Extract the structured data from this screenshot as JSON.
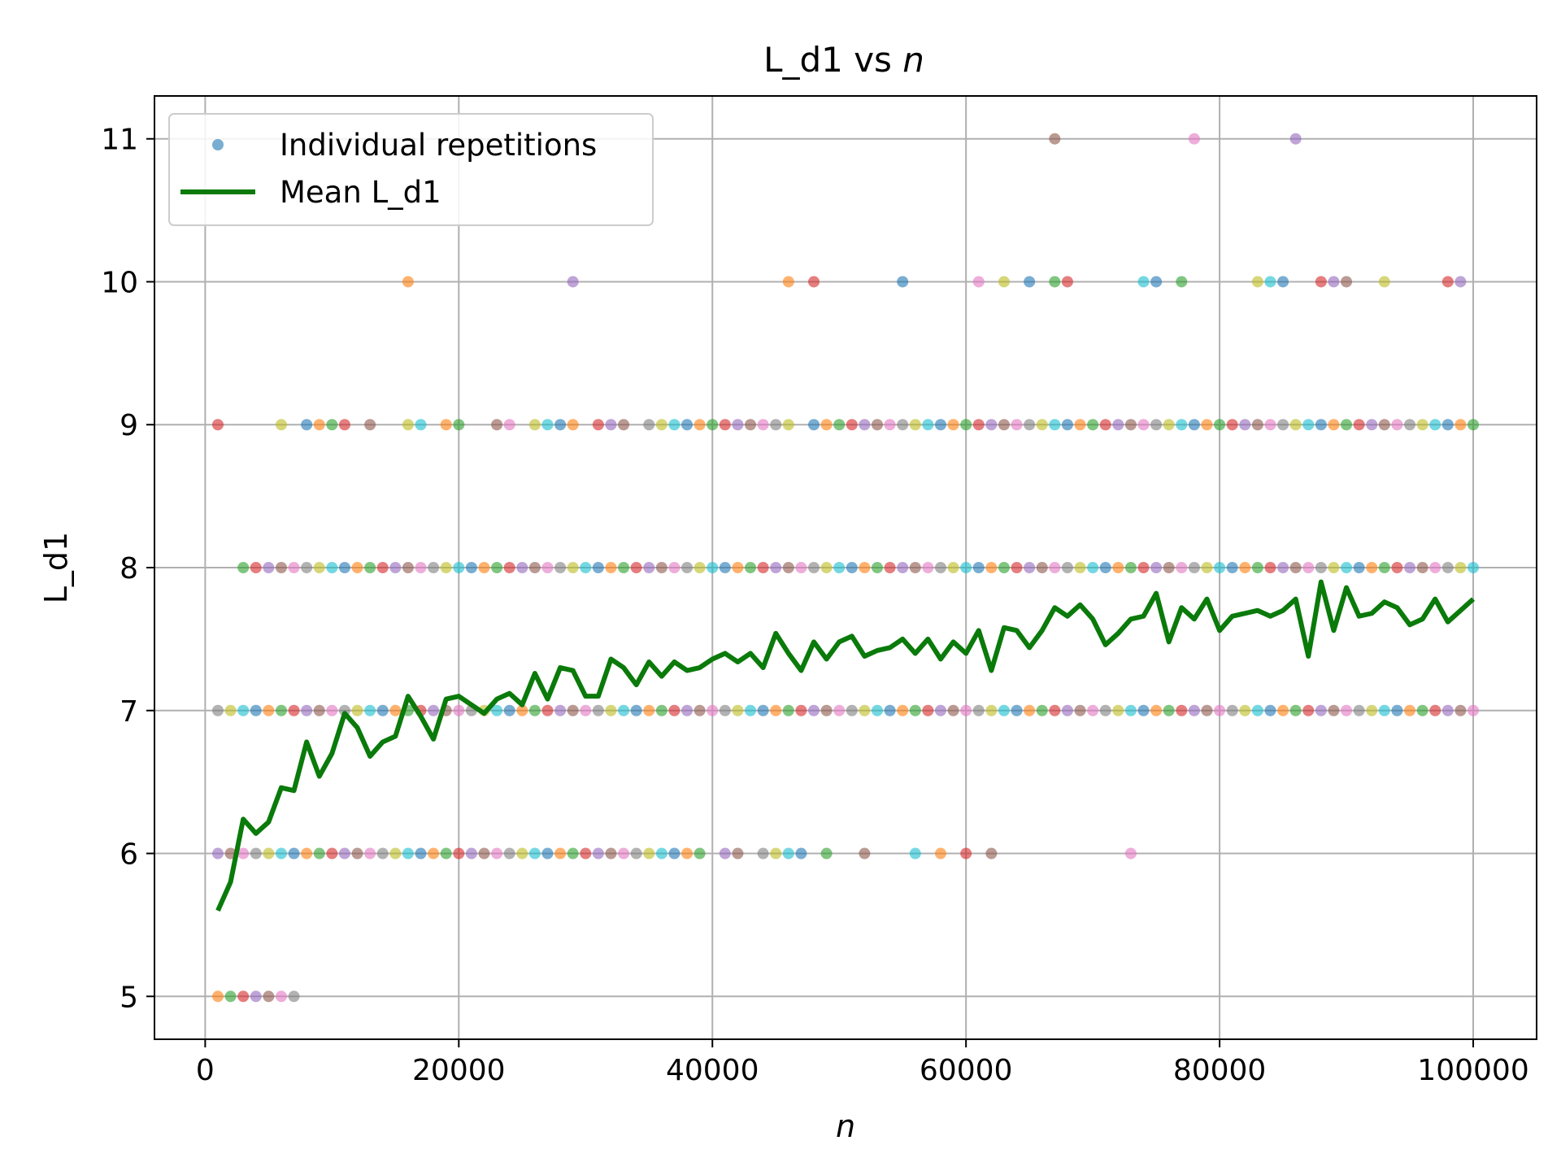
{
  "chart_data": {
    "type": "scatter",
    "title_main": "L_d1 vs ",
    "title_var": "n",
    "xlabel": "n",
    "ylabel": "L_d1",
    "xlim": [
      -4000,
      105000
    ],
    "ylim": [
      4.7,
      11.3
    ],
    "x_ticks": [
      0,
      20000,
      40000,
      60000,
      80000,
      100000
    ],
    "y_ticks": [
      5,
      6,
      7,
      8,
      9,
      10,
      11
    ],
    "grid": true,
    "legend_position": "top-left",
    "legend": [
      {
        "label": "Individual repetitions",
        "marker": "dot"
      },
      {
        "label": "Mean L_d1",
        "marker": "line"
      }
    ],
    "palette": [
      "#1f77b4",
      "#ff7f0e",
      "#2ca02c",
      "#d62728",
      "#9467bd",
      "#8c564b",
      "#e377c2",
      "#7f7f7f",
      "#bcbd22",
      "#17becf"
    ],
    "mean_color": "#0a7a0a",
    "individual_points": [
      {
        "y": 5,
        "x": [
          1000,
          2000,
          3000,
          4000,
          5000,
          6000,
          7000
        ]
      },
      {
        "y": 6,
        "x": [
          1000,
          2000,
          3000,
          4000,
          5000,
          6000,
          7000,
          8000,
          9000,
          10000,
          11000,
          12000,
          13000,
          14000,
          15000,
          16000,
          17000,
          18000,
          19000,
          20000,
          21000,
          22000,
          23000,
          24000,
          25000,
          26000,
          27000,
          28000,
          29000,
          30000,
          31000,
          32000,
          33000,
          34000,
          35000,
          36000,
          37000,
          38000,
          39000,
          41000,
          42000,
          44000,
          45000,
          46000,
          47000,
          49000,
          52000,
          56000,
          58000,
          60000,
          62000,
          73000
        ]
      },
      {
        "y": 7,
        "x": [
          1000,
          2000,
          3000,
          4000,
          5000,
          6000,
          7000,
          8000,
          9000,
          10000,
          11000,
          12000,
          13000,
          14000,
          15000,
          16000,
          17000,
          18000,
          19000,
          20000,
          21000,
          22000,
          23000,
          24000,
          25000,
          26000,
          27000,
          28000,
          29000,
          30000,
          31000,
          32000,
          33000,
          34000,
          35000,
          36000,
          37000,
          38000,
          39000,
          40000,
          41000,
          42000,
          43000,
          44000,
          45000,
          46000,
          47000,
          48000,
          49000,
          50000,
          51000,
          52000,
          53000,
          54000,
          55000,
          56000,
          57000,
          58000,
          59000,
          60000,
          61000,
          62000,
          63000,
          64000,
          65000,
          66000,
          67000,
          68000,
          69000,
          70000,
          71000,
          72000,
          73000,
          74000,
          75000,
          76000,
          77000,
          78000,
          79000,
          80000,
          81000,
          82000,
          83000,
          84000,
          85000,
          86000,
          87000,
          88000,
          89000,
          90000,
          91000,
          92000,
          93000,
          94000,
          95000,
          96000,
          97000,
          98000,
          99000,
          100000
        ]
      },
      {
        "y": 8,
        "x": [
          3000,
          4000,
          5000,
          6000,
          7000,
          8000,
          9000,
          10000,
          11000,
          12000,
          13000,
          14000,
          15000,
          16000,
          17000,
          18000,
          19000,
          20000,
          21000,
          22000,
          23000,
          24000,
          25000,
          26000,
          27000,
          28000,
          29000,
          30000,
          31000,
          32000,
          33000,
          34000,
          35000,
          36000,
          37000,
          38000,
          39000,
          40000,
          41000,
          42000,
          43000,
          44000,
          45000,
          46000,
          47000,
          48000,
          49000,
          50000,
          51000,
          52000,
          53000,
          54000,
          55000,
          56000,
          57000,
          58000,
          59000,
          60000,
          61000,
          62000,
          63000,
          64000,
          65000,
          66000,
          67000,
          68000,
          69000,
          70000,
          71000,
          72000,
          73000,
          74000,
          75000,
          76000,
          77000,
          78000,
          79000,
          80000,
          81000,
          82000,
          83000,
          84000,
          85000,
          86000,
          87000,
          88000,
          89000,
          90000,
          91000,
          92000,
          93000,
          94000,
          95000,
          96000,
          97000,
          98000,
          99000,
          100000
        ]
      },
      {
        "y": 9,
        "x": [
          1000,
          6000,
          8000,
          9000,
          10000,
          11000,
          13000,
          16000,
          17000,
          19000,
          20000,
          23000,
          24000,
          26000,
          27000,
          28000,
          29000,
          31000,
          32000,
          33000,
          35000,
          36000,
          37000,
          38000,
          39000,
          40000,
          41000,
          42000,
          43000,
          44000,
          45000,
          46000,
          48000,
          49000,
          50000,
          51000,
          52000,
          53000,
          54000,
          55000,
          56000,
          57000,
          58000,
          59000,
          60000,
          61000,
          62000,
          63000,
          64000,
          65000,
          66000,
          67000,
          68000,
          69000,
          70000,
          71000,
          72000,
          73000,
          74000,
          75000,
          76000,
          77000,
          78000,
          79000,
          80000,
          81000,
          82000,
          83000,
          84000,
          85000,
          86000,
          87000,
          88000,
          89000,
          90000,
          91000,
          92000,
          93000,
          94000,
          95000,
          96000,
          97000,
          98000,
          99000,
          100000
        ]
      },
      {
        "y": 10,
        "x": [
          16000,
          29000,
          46000,
          48000,
          55000,
          61000,
          63000,
          65000,
          67000,
          68000,
          74000,
          75000,
          77000,
          83000,
          84000,
          85000,
          88000,
          89000,
          90000,
          93000,
          98000,
          99000
        ]
      },
      {
        "y": 11,
        "x": [
          67000,
          78000,
          86000
        ]
      }
    ],
    "mean_series": {
      "name": "Mean L_d1",
      "x": [
        1000,
        2000,
        3000,
        4000,
        5000,
        6000,
        7000,
        8000,
        9000,
        10000,
        11000,
        12000,
        13000,
        14000,
        15000,
        16000,
        17000,
        18000,
        19000,
        20000,
        21000,
        22000,
        23000,
        24000,
        25000,
        26000,
        27000,
        28000,
        29000,
        30000,
        31000,
        32000,
        33000,
        34000,
        35000,
        36000,
        37000,
        38000,
        39000,
        40000,
        41000,
        42000,
        43000,
        44000,
        45000,
        46000,
        47000,
        48000,
        49000,
        50000,
        51000,
        52000,
        53000,
        54000,
        55000,
        56000,
        57000,
        58000,
        59000,
        60000,
        61000,
        62000,
        63000,
        64000,
        65000,
        66000,
        67000,
        68000,
        69000,
        70000,
        71000,
        72000,
        73000,
        74000,
        75000,
        76000,
        77000,
        78000,
        79000,
        80000,
        81000,
        82000,
        83000,
        84000,
        85000,
        86000,
        87000,
        88000,
        89000,
        90000,
        91000,
        92000,
        93000,
        94000,
        95000,
        96000,
        97000,
        98000,
        99000,
        100000
      ],
      "y": [
        5.6,
        5.8,
        6.24,
        6.14,
        6.22,
        6.46,
        6.44,
        6.78,
        6.54,
        6.7,
        6.98,
        6.88,
        6.68,
        6.78,
        6.82,
        7.1,
        6.96,
        6.8,
        7.08,
        7.1,
        7.04,
        6.98,
        7.08,
        7.12,
        7.04,
        7.26,
        7.08,
        7.3,
        7.28,
        7.1,
        7.1,
        7.36,
        7.3,
        7.18,
        7.34,
        7.24,
        7.34,
        7.28,
        7.3,
        7.36,
        7.4,
        7.34,
        7.4,
        7.3,
        7.54,
        7.4,
        7.28,
        7.48,
        7.36,
        7.48,
        7.52,
        7.38,
        7.42,
        7.44,
        7.5,
        7.4,
        7.5,
        7.36,
        7.48,
        7.4,
        7.56,
        7.28,
        7.58,
        7.56,
        7.44,
        7.56,
        7.72,
        7.66,
        7.74,
        7.64,
        7.46,
        7.54,
        7.64,
        7.66,
        7.82,
        7.48,
        7.72,
        7.64,
        7.78,
        7.56,
        7.66,
        7.68,
        7.7,
        7.66,
        7.7,
        7.78,
        7.38,
        7.9,
        7.56,
        7.86,
        7.66,
        7.68,
        7.76,
        7.72,
        7.6,
        7.64,
        7.78,
        7.62,
        7.7,
        7.78
      ]
    }
  }
}
